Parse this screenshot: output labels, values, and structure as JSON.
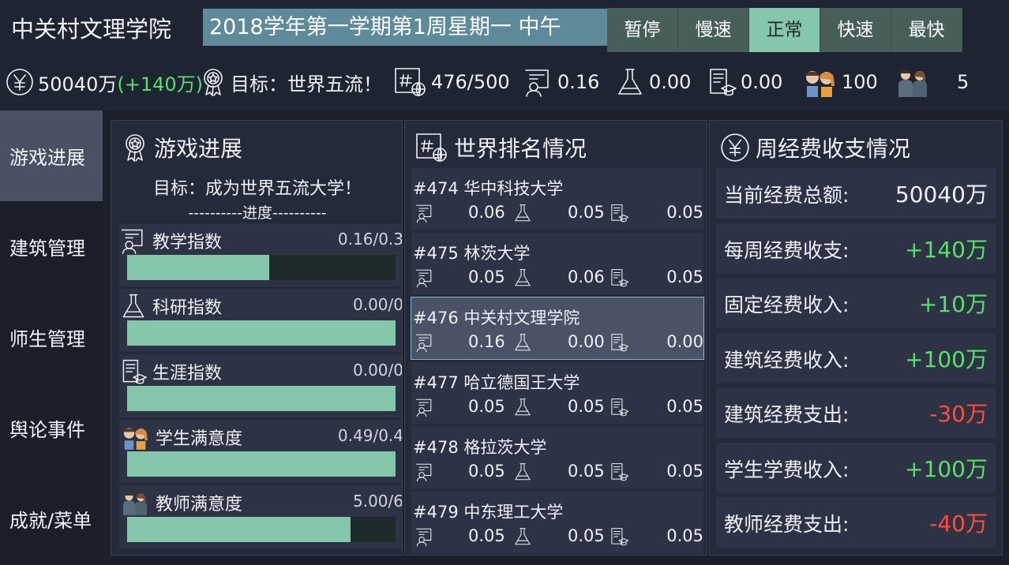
{
  "header": {
    "university": "中关村文理学院",
    "date": "2018学年第一学期第1周星期一 中午",
    "speeds": [
      "暂停",
      "慢速",
      "正常",
      "快速",
      "最快"
    ],
    "active_speed": 2
  },
  "stats": {
    "money": "50040万",
    "money_delta": "(+140万)",
    "goal": "目标：世界五流！",
    "rank": "476/500",
    "teaching": "0.16",
    "research": "0.00",
    "career": "0.00",
    "students": "100",
    "teachers": "5"
  },
  "sidebar": {
    "items": [
      "游戏进展",
      "建筑管理",
      "师生管理",
      "舆论事件",
      "成就/菜单"
    ],
    "active": 0
  },
  "progress": {
    "title": "游戏进展",
    "goal": "目标：成为世界五流大学！",
    "progress_label": "----------进度----------",
    "indicators": [
      {
        "label": "教学指数",
        "value": "0.16/0.3",
        "fill": 0.53
      },
      {
        "label": "科研指数",
        "value": "0.00/0",
        "fill": 1.0
      },
      {
        "label": "生涯指数",
        "value": "0.00/0",
        "fill": 1.0
      },
      {
        "label": "学生满意度",
        "value": "0.49/0.4",
        "fill": 1.0
      },
      {
        "label": "教师满意度",
        "value": "5.00/6",
        "fill": 0.833
      }
    ]
  },
  "ranking": {
    "title": "世界排名情况",
    "entries": [
      {
        "name": "#474 华中科技大学",
        "teaching": "0.06",
        "research": "0.05",
        "career": "0.05"
      },
      {
        "name": "#475 林茨大学",
        "teaching": "0.05",
        "research": "0.06",
        "career": "0.05"
      },
      {
        "name": "#476 中关村文理学院",
        "teaching": "0.16",
        "research": "0.00",
        "career": "0.00"
      },
      {
        "name": "#477 哈立德国王大学",
        "teaching": "0.05",
        "research": "0.05",
        "career": "0.05"
      },
      {
        "name": "#478 格拉茨大学",
        "teaching": "0.05",
        "research": "0.05",
        "career": "0.05"
      },
      {
        "name": "#479 中东理工大学",
        "teaching": "0.05",
        "research": "0.05",
        "career": "0.05"
      }
    ],
    "highlight": 2
  },
  "finance": {
    "title": "周经费收支情况",
    "rows": [
      {
        "label": "当前经费总额:",
        "value": "50040万",
        "tone": "white"
      },
      {
        "label": "每周经费收支:",
        "value": "+140万",
        "tone": "green"
      },
      {
        "label": "固定经费收入:",
        "value": "+10万",
        "tone": "green"
      },
      {
        "label": "建筑经费收入:",
        "value": "+100万",
        "tone": "green"
      },
      {
        "label": "建筑经费支出:",
        "value": "-30万",
        "tone": "red"
      },
      {
        "label": "学生学费收入:",
        "value": "+100万",
        "tone": "green"
      },
      {
        "label": "教师经费支出:",
        "value": "-40万",
        "tone": "red"
      }
    ]
  },
  "colors": {
    "accent": "#86c7ab",
    "date_bg": "#5e8a99",
    "positive": "#58e06b",
    "negative": "#ff4c3b"
  }
}
